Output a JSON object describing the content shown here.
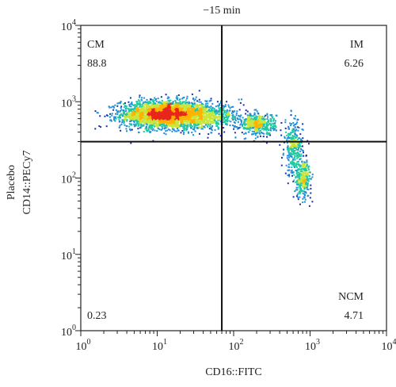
{
  "chart_data": {
    "type": "scatter",
    "title": "−15 min",
    "xlabel": "CD16::FITC",
    "ylabel": "CD14::PECy7",
    "side_label": "Placebo",
    "x_scale": "log",
    "y_scale": "log",
    "xlim": [
      1,
      10000
    ],
    "ylim": [
      1,
      10000
    ],
    "x_ticks": [
      {
        "base": "10",
        "exp": "0"
      },
      {
        "base": "10",
        "exp": "1"
      },
      {
        "base": "10",
        "exp": "2"
      },
      {
        "base": "10",
        "exp": "3"
      },
      {
        "base": "10",
        "exp": "4"
      }
    ],
    "y_ticks": [
      {
        "base": "10",
        "exp": "0"
      },
      {
        "base": "10",
        "exp": "1"
      },
      {
        "base": "10",
        "exp": "2"
      },
      {
        "base": "10",
        "exp": "3"
      },
      {
        "base": "10",
        "exp": "4"
      }
    ],
    "gates": {
      "x": 70,
      "y": 300
    },
    "quadrants": [
      {
        "name": "CM",
        "value": "88.8",
        "position": "top-left"
      },
      {
        "name": "IM",
        "value": "6.26",
        "position": "top-right"
      },
      {
        "name": "",
        "value": "0.23",
        "position": "bottom-left"
      },
      {
        "name": "NCM",
        "value": "4.71",
        "position": "bottom-right"
      }
    ],
    "clusters": [
      {
        "x": 12,
        "y": 700,
        "sx": 0.28,
        "sy": 0.09,
        "n": 2600
      },
      {
        "x": 40,
        "y": 650,
        "sx": 0.25,
        "sy": 0.08,
        "n": 700
      },
      {
        "x": 200,
        "y": 520,
        "sx": 0.12,
        "sy": 0.07,
        "n": 450
      },
      {
        "x": 600,
        "y": 250,
        "sx": 0.06,
        "sy": 0.18,
        "n": 320
      },
      {
        "x": 800,
        "y": 100,
        "sx": 0.05,
        "sy": 0.12,
        "n": 300
      }
    ],
    "grid": false,
    "legend": "none",
    "colormap": [
      "#1e2fa8",
      "#1f8fd6",
      "#22c9a0",
      "#c8e63a",
      "#ffb300",
      "#e8261c"
    ]
  }
}
